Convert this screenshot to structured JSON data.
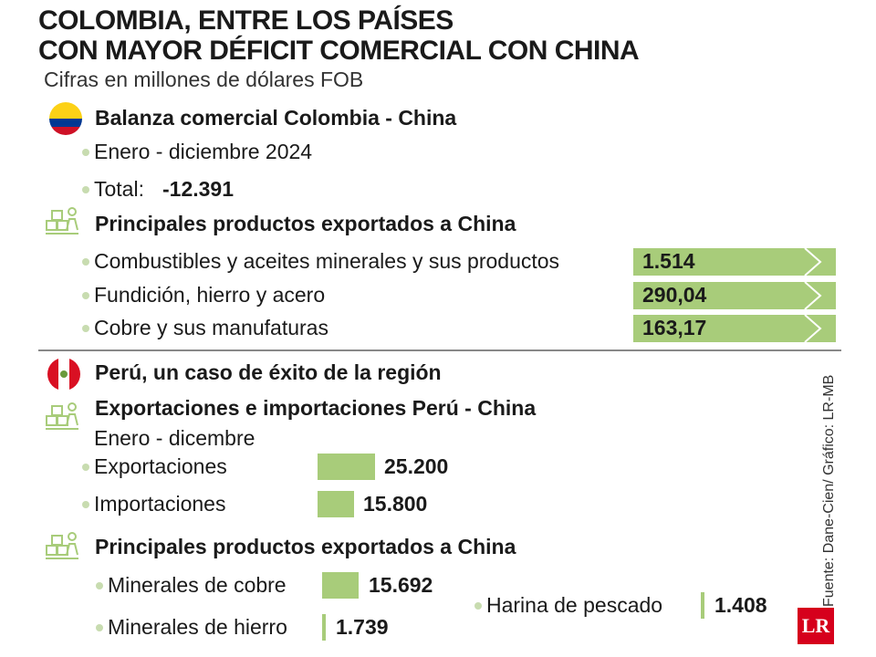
{
  "header": {
    "title_line1": "COLOMBIA, ENTRE LOS PAÍSES",
    "title_line2": "CON MAYOR DÉFICIT COMERCIAL CON CHINA",
    "subtitle": "Cifras en millones de dólares FOB"
  },
  "colombia": {
    "balance_heading": "Balanza comercial Colombia - China",
    "period": "Enero - diciembre 2024",
    "total_label": "Total:",
    "total_value": "-12.391",
    "exports_heading": "Principales productos exportados a China"
  },
  "peru": {
    "heading": "Perú, un caso de éxito de la región",
    "trade_heading": "Exportaciones e importaciones Perú - China",
    "period": "Enero - dicembre",
    "exports_heading": "Principales productos exportados a China"
  },
  "chart_data": [
    {
      "type": "bar",
      "categories": [
        "Combustibles y aceites minerales y sus productos",
        "Fundición, hierro y acero",
        "Cobre y sus manufaturas"
      ],
      "values": [
        1514,
        290.04,
        163.17
      ],
      "value_labels": [
        "1.514",
        "290,04",
        "163,17"
      ]
    },
    {
      "type": "bar",
      "categories": [
        "Exportaciones",
        "Importaciones"
      ],
      "values": [
        25200,
        15800
      ],
      "value_labels": [
        "25.200",
        "15.800"
      ]
    },
    {
      "type": "bar",
      "categories": [
        "Minerales de cobre",
        "Minerales de hierro",
        "Harina de pescado"
      ],
      "values": [
        15692,
        1739,
        1408
      ],
      "value_labels": [
        "15.692",
        "1.739",
        "1.408"
      ]
    }
  ],
  "colors": {
    "bar": "#a8cc7a",
    "bullet": "#c8dcb0",
    "logo": "#d6001c"
  },
  "footer": {
    "source": "Fuente: Dane-Cien/ Gráfico: LR-MB",
    "logo": "LR"
  }
}
